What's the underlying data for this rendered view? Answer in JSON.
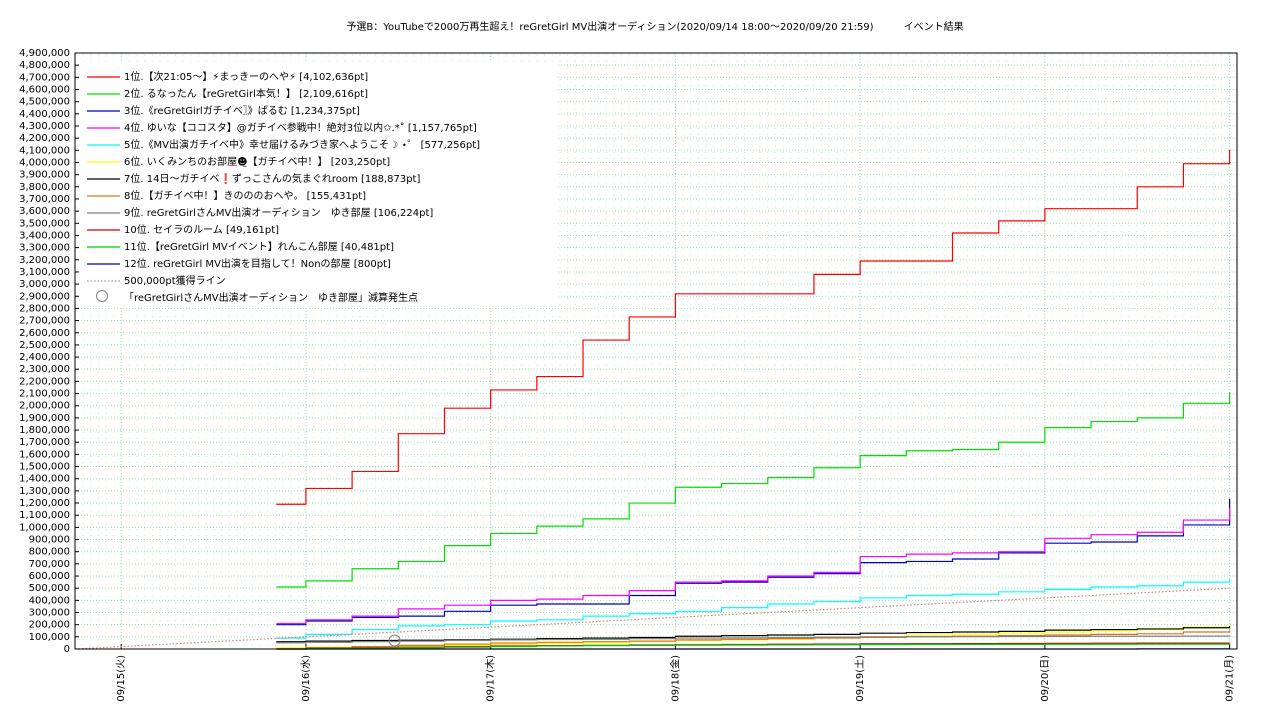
{
  "chart_data": {
    "type": "line",
    "step": true,
    "grid": true,
    "legend": "upper left",
    "title": "予選B：YouTubeで2000万再生超え！reGretGirl MV出演オーディション(2020/09/14 18:00～2020/09/20 21:59)　　　イベント結果",
    "xlim": [
      14.75,
      21.04
    ],
    "xticks": [
      {
        "value": 15,
        "label": "09/15(火)"
      },
      {
        "value": 16,
        "label": "09/16(水)"
      },
      {
        "value": 17,
        "label": "09/17(木)"
      },
      {
        "value": 18,
        "label": "09/18(金)"
      },
      {
        "value": 19,
        "label": "09/19(土)"
      },
      {
        "value": 20,
        "label": "09/20(日)"
      },
      {
        "value": 21,
        "label": "09/21(月)"
      }
    ],
    "ylim": [
      0,
      4900000
    ],
    "yticks": [
      0,
      {
        "value": 100000,
        "label": "100,000"
      },
      {
        "value": 200000,
        "label": "200,000"
      },
      {
        "value": 300000,
        "label": "300,000"
      },
      {
        "value": 400000,
        "label": "400,000"
      },
      {
        "value": 500000,
        "label": "500,000"
      },
      {
        "value": 600000,
        "label": "600,000"
      },
      {
        "value": 700000,
        "label": "700,000"
      },
      {
        "value": 800000,
        "label": "800,000"
      },
      {
        "value": 900000,
        "label": "900,000"
      },
      {
        "value": 1000000,
        "label": "1,000,000"
      },
      {
        "value": 1100000,
        "label": "1,100,000"
      },
      {
        "value": 1200000,
        "label": "1,200,000"
      },
      {
        "value": 1300000,
        "label": "1,300,000"
      },
      {
        "value": 1400000,
        "label": "1,400,000"
      },
      {
        "value": 1500000,
        "label": "1,500,000"
      },
      {
        "value": 1600000,
        "label": "1,600,000"
      },
      {
        "value": 1700000,
        "label": "1,700,000"
      },
      {
        "value": 1800000,
        "label": "1,800,000"
      },
      {
        "value": 1900000,
        "label": "1,900,000"
      },
      {
        "value": 2000000,
        "label": "2,000,000"
      },
      {
        "value": 2100000,
        "label": "2,100,000"
      },
      {
        "value": 2200000,
        "label": "2,200,000"
      },
      {
        "value": 2300000,
        "label": "2,300,000"
      },
      {
        "value": 2400000,
        "label": "2,400,000"
      },
      {
        "value": 2500000,
        "label": "2,500,000"
      },
      {
        "value": 2600000,
        "label": "2,600,000"
      },
      {
        "value": 2700000,
        "label": "2,700,000"
      },
      {
        "value": 2800000,
        "label": "2,800,000"
      },
      {
        "value": 2900000,
        "label": "2,900,000"
      },
      {
        "value": 3000000,
        "label": "3,000,000"
      },
      {
        "value": 3100000,
        "label": "3,100,000"
      },
      {
        "value": 3200000,
        "label": "3,200,000"
      },
      {
        "value": 3300000,
        "label": "3,300,000"
      },
      {
        "value": 3400000,
        "label": "3,400,000"
      },
      {
        "value": 3500000,
        "label": "3,500,000"
      },
      {
        "value": 3600000,
        "label": "3,600,000"
      },
      {
        "value": 3700000,
        "label": "3,700,000"
      },
      {
        "value": 3800000,
        "label": "3,800,000"
      },
      {
        "value": 3900000,
        "label": "3,900,000"
      },
      {
        "value": 4000000,
        "label": "4,000,000"
      },
      {
        "value": 4100000,
        "label": "4,100,000"
      },
      {
        "value": 4200000,
        "label": "4,200,000"
      },
      {
        "value": 4300000,
        "label": "4,300,000"
      },
      {
        "value": 4400000,
        "label": "4,400,000"
      },
      {
        "value": 4500000,
        "label": "4,500,000"
      },
      {
        "value": 4600000,
        "label": "4,600,000"
      },
      {
        "value": 4700000,
        "label": "4,700,000"
      },
      {
        "value": 4800000,
        "label": "4,800,000"
      },
      {
        "value": 4900000,
        "label": "4,900,000"
      }
    ],
    "x": [
      14.75,
      15.84,
      16.0,
      16.25,
      16.5,
      16.75,
      17.0,
      17.25,
      17.5,
      17.75,
      18.0,
      18.25,
      18.5,
      18.75,
      19.0,
      19.25,
      19.5,
      19.75,
      20.0,
      20.25,
      20.5,
      20.75,
      21.0
    ],
    "series": [
      {
        "name": "1位.【次21:05〜】⚡まっきーのへや⚡ [4,102,636pt]",
        "color": "#ff0000",
        "values": [
          null,
          1190000,
          1320000,
          1460000,
          1770000,
          1980000,
          2130000,
          2240000,
          2540000,
          2730000,
          2920000,
          2920000,
          2920000,
          3080000,
          3190000,
          3190000,
          3420000,
          3520000,
          3620000,
          3620000,
          3800000,
          3990000,
          4102636
        ]
      },
      {
        "name": "2位. るなったん【reGretGirl本気！】 [2,109,616pt]",
        "color": "#00e000",
        "values": [
          null,
          510000,
          560000,
          660000,
          720000,
          850000,
          950000,
          1010000,
          1070000,
          1200000,
          1330000,
          1360000,
          1410000,
          1490000,
          1590000,
          1630000,
          1640000,
          1700000,
          1820000,
          1870000,
          1900000,
          2020000,
          2109616
        ]
      },
      {
        "name": "3位.《reGretGirlガチイベ〗》ぱるむ [1,234,375pt]",
        "color": "#0000cc",
        "values": [
          null,
          200000,
          230000,
          260000,
          270000,
          310000,
          360000,
          370000,
          370000,
          440000,
          540000,
          550000,
          590000,
          620000,
          710000,
          720000,
          740000,
          790000,
          870000,
          880000,
          930000,
          1020000,
          1234375
        ]
      },
      {
        "name": "4位. ゆいな【ココスタ】@ガチイベ参戦中！絶対3位以内✩.*˚ [1,157,765pt]",
        "color": "#ff00ff",
        "values": [
          null,
          210000,
          240000,
          270000,
          330000,
          360000,
          400000,
          410000,
          440000,
          480000,
          550000,
          560000,
          600000,
          630000,
          760000,
          780000,
          790000,
          800000,
          910000,
          940000,
          960000,
          1060000,
          1157765
        ]
      },
      {
        "name": "5位.《MV出演ガチイベ中》幸せ届けるみづき家へようこそ☽ ⋆゜ [577,256pt]",
        "color": "#00ffff",
        "values": [
          null,
          90000,
          120000,
          160000,
          190000,
          200000,
          230000,
          240000,
          270000,
          290000,
          310000,
          340000,
          370000,
          390000,
          420000,
          440000,
          450000,
          470000,
          490000,
          510000,
          520000,
          550000,
          577256
        ]
      },
      {
        "name": "6位. いくみンちのお部屋☻̤【ガチイベ中！】 [203,250pt]",
        "color": "#ffff00",
        "values": [
          null,
          10000,
          15000,
          20000,
          25000,
          30000,
          40000,
          45000,
          50000,
          60000,
          70000,
          75000,
          80000,
          90000,
          100000,
          110000,
          120000,
          130000,
          140000,
          150000,
          160000,
          180000,
          203250
        ]
      },
      {
        "name": "7位. 14日〜ガチイベ❗ずっこさんの気まぐれroom [188,873pt]",
        "color": "#000000",
        "values": [
          null,
          60000,
          65000,
          70000,
          72000,
          75000,
          80000,
          85000,
          90000,
          95000,
          105000,
          110000,
          115000,
          120000,
          130000,
          135000,
          140000,
          145000,
          155000,
          160000,
          165000,
          175000,
          188873
        ]
      },
      {
        "name": "8位.【ガチイベ中！】きのののおへや。 [155,431pt]",
        "color": "#e07020",
        "values": [
          null,
          0,
          10000,
          20000,
          30000,
          40000,
          50000,
          55000,
          60000,
          65000,
          75000,
          80000,
          85000,
          90000,
          95000,
          100000,
          105000,
          110000,
          115000,
          120000,
          125000,
          140000,
          155431
        ]
      },
      {
        "name": "9位. reGretGirlさんMV出演オーディション　ゆき部屋 [106,224pt]",
        "color": "#808080",
        "values": [
          null,
          50000,
          55000,
          60000,
          65000,
          70000,
          75000,
          78000,
          80000,
          85000,
          90000,
          92000,
          95000,
          98000,
          100000,
          101000,
          102000,
          103000,
          104000,
          105000,
          105000,
          106000,
          106224
        ]
      },
      {
        "name": "10位. セイラのルーム [49,161pt]",
        "color": "#cc0000",
        "values": [
          null,
          0,
          5000,
          10000,
          15000,
          20000,
          25000,
          28000,
          30000,
          33000,
          35000,
          37000,
          39000,
          40000,
          42000,
          43000,
          44000,
          45000,
          46000,
          47000,
          48000,
          49000,
          49161
        ]
      },
      {
        "name": "11位.【reGretGirl MVイベント】れんこん部屋 [40,481pt]",
        "color": "#00cc00",
        "values": [
          null,
          0,
          3000,
          6000,
          10000,
          15000,
          20000,
          25000,
          28000,
          30000,
          32000,
          33000,
          34000,
          35000,
          36000,
          37000,
          38000,
          38000,
          39000,
          39000,
          40000,
          40000,
          40481
        ]
      },
      {
        "name": "12位. reGretGirl MV出演を目指して！Nonの部屋 [800pt]",
        "color": "#0000aa",
        "values": [
          null,
          0,
          0,
          0,
          0,
          0,
          0,
          0,
          0,
          0,
          0,
          0,
          0,
          0,
          0,
          0,
          0,
          0,
          0,
          0,
          800,
          800,
          800
        ]
      },
      {
        "name": "500,000pt獲得ライン",
        "color": "#d08080",
        "linestyle": "dotted",
        "values": [
          0,
          87200,
          100000,
          120000,
          140000,
          160000,
          180000,
          200000,
          220000,
          240000,
          260000,
          280000,
          300000,
          320000,
          340000,
          360000,
          380000,
          400000,
          420000,
          440000,
          460000,
          480000,
          500000
        ]
      }
    ],
    "markers": {
      "name": "「reGretGirlさんMV出演オーディション　ゆき部屋」減算発生点",
      "color": "#808080",
      "x": [
        16.48
      ],
      "values": [
        70000
      ]
    }
  }
}
